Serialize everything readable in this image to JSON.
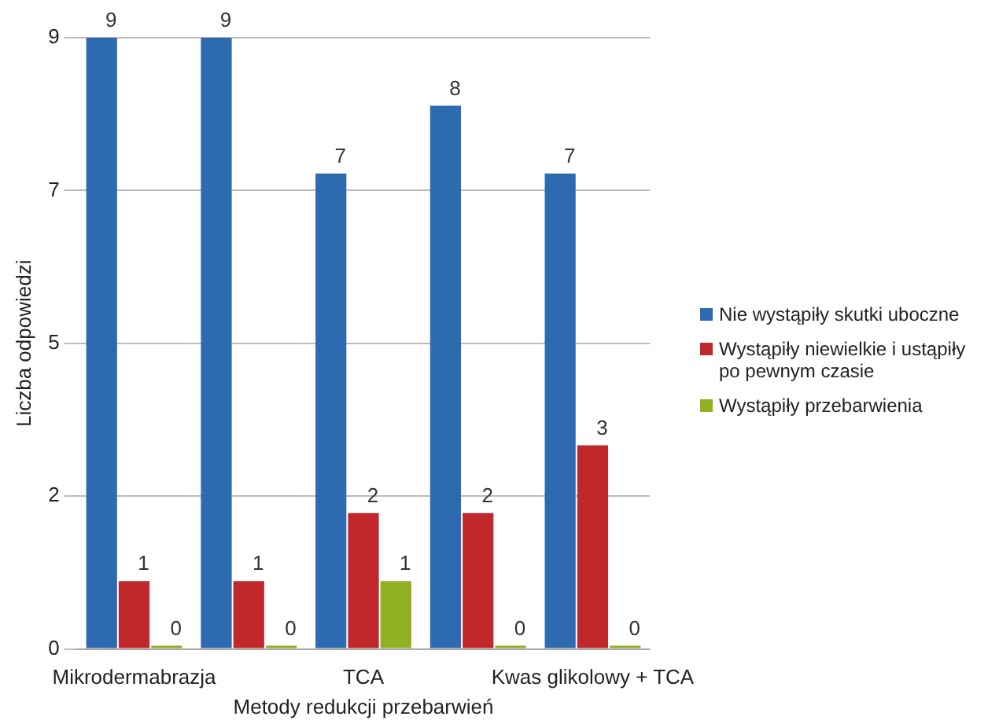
{
  "chart_data": {
    "type": "bar",
    "xlabel": "Metody redukcji przebarwień",
    "ylabel": "Liczba odpowiedzi",
    "categories": [
      "Mikrodermabrazja",
      null,
      "TCA",
      null,
      "Kwas glikolowy + TCA"
    ],
    "series": [
      {
        "name": "Nie wystąpiły skutki uboczne",
        "color": "#2e6ab0",
        "values": [
          9,
          9,
          7,
          8,
          7
        ]
      },
      {
        "name": "Wystąpiły niewielkie i ustąpiły po pewnym czasie",
        "color": "#c0282b",
        "values": [
          1,
          1,
          2,
          2,
          3
        ]
      },
      {
        "name": "Wystąpiły przebarwienia",
        "color": "#8fb021",
        "values": [
          0,
          0,
          1,
          0,
          0
        ]
      }
    ],
    "ylim": [
      0,
      9
    ],
    "yticks": [
      0,
      {
        "value": 2.25,
        "label": "2"
      },
      {
        "value": 4.5,
        "label": "5"
      },
      {
        "value": 6.75,
        "label": "7"
      },
      9
    ],
    "grid": "y",
    "legend": "right",
    "data_labels": true
  }
}
